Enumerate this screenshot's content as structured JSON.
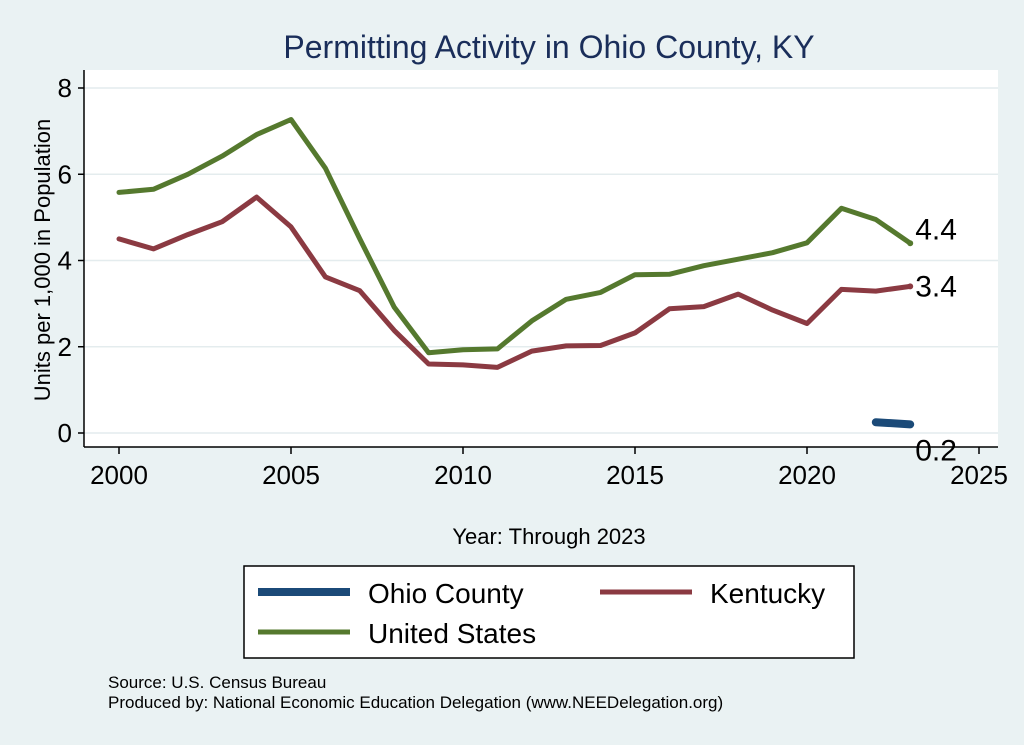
{
  "chart_data": {
    "type": "line",
    "title": "Permitting Activity in Ohio County, KY",
    "xlabel": "Year: Through 2023",
    "ylabel": "Units per 1,000 in Population",
    "xlim": [
      2000,
      2025
    ],
    "ylim": [
      0,
      8
    ],
    "x_ticks": [
      2000,
      2005,
      2010,
      2015,
      2020,
      2025
    ],
    "y_ticks": [
      0,
      2,
      4,
      6,
      8
    ],
    "grid": true,
    "legend_position": "bottom",
    "series": [
      {
        "name": "Ohio County",
        "color": "#1b4a78",
        "x": [
          2022,
          2023
        ],
        "values": [
          0.25,
          0.2
        ],
        "end_label": "0.2"
      },
      {
        "name": "Kentucky",
        "color": "#8b3a42",
        "x": [
          2000,
          2001,
          2002,
          2003,
          2004,
          2005,
          2006,
          2007,
          2008,
          2009,
          2010,
          2011,
          2012,
          2013,
          2014,
          2015,
          2016,
          2017,
          2018,
          2019,
          2020,
          2021,
          2022,
          2023
        ],
        "values": [
          4.5,
          4.27,
          4.6,
          4.9,
          5.47,
          4.78,
          3.62,
          3.3,
          2.38,
          1.6,
          1.58,
          1.52,
          1.9,
          2.02,
          2.03,
          2.32,
          2.88,
          2.93,
          3.22,
          2.85,
          2.54,
          3.33,
          3.29,
          3.4
        ],
        "end_label": "3.4"
      },
      {
        "name": "United States",
        "color": "#55792e",
        "x": [
          2000,
          2001,
          2002,
          2003,
          2004,
          2005,
          2006,
          2007,
          2008,
          2009,
          2010,
          2011,
          2012,
          2013,
          2014,
          2015,
          2016,
          2017,
          2018,
          2019,
          2020,
          2021,
          2022,
          2023
        ],
        "values": [
          5.58,
          5.65,
          6.0,
          6.42,
          6.92,
          7.27,
          6.14,
          4.5,
          2.92,
          1.86,
          1.93,
          1.95,
          2.6,
          3.1,
          3.26,
          3.67,
          3.68,
          3.88,
          4.03,
          4.18,
          4.41,
          5.21,
          4.95,
          4.4
        ],
        "end_label": "4.4"
      }
    ],
    "legend": {
      "entries": [
        "Ohio County",
        "Kentucky",
        "United States"
      ]
    },
    "source_lines": [
      "Source: U.S. Census Bureau",
      "Produced by: National Economic Education Delegation (www.NEEDelegation.org)"
    ]
  }
}
